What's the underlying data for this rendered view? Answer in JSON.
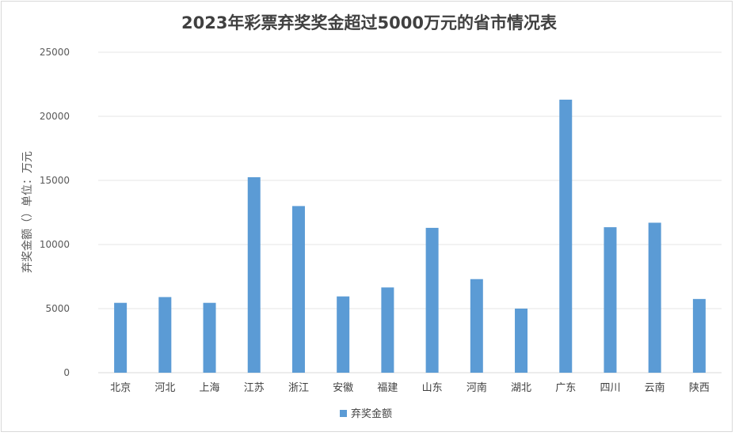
{
  "chart_data": {
    "type": "bar",
    "title": "2023年彩票弃奖奖金超过5000万元的省市情况表",
    "xlabel": "",
    "ylabel": "弃奖金额（）单位：万元",
    "categories": [
      "北京",
      "河北",
      "上海",
      "江苏",
      "浙江",
      "安徽",
      "福建",
      "山东",
      "河南",
      "湖北",
      "广东",
      "四川",
      "云南",
      "陕西"
    ],
    "series": [
      {
        "name": "弃奖金额",
        "color": "#5b9bd5",
        "values": [
          5450,
          5900,
          5450,
          15250,
          13000,
          5950,
          6650,
          11300,
          7300,
          5000,
          21300,
          11350,
          11700,
          5750
        ]
      }
    ],
    "ylim": [
      0,
      25000
    ],
    "yticks": [
      "0",
      "5000",
      "10000",
      "15000",
      "20000",
      "25000"
    ],
    "grid": true,
    "legend": "bottom"
  }
}
